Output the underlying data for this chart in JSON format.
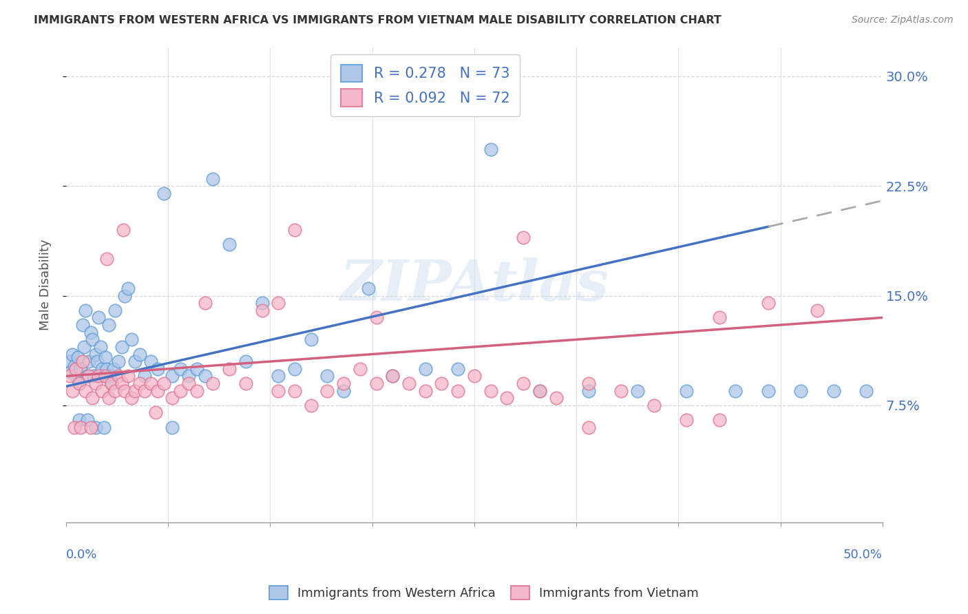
{
  "title": "IMMIGRANTS FROM WESTERN AFRICA VS IMMIGRANTS FROM VIETNAM MALE DISABILITY CORRELATION CHART",
  "source": "Source: ZipAtlas.com",
  "ylabel": "Male Disability",
  "xlim": [
    0.0,
    0.5
  ],
  "ylim": [
    -0.005,
    0.32
  ],
  "yticks": [
    0.075,
    0.15,
    0.225,
    0.3
  ],
  "ytick_labels": [
    "7.5%",
    "15.0%",
    "22.5%",
    "30.0%"
  ],
  "xticks": [
    0.0,
    0.0625,
    0.125,
    0.1875,
    0.25,
    0.3125,
    0.375,
    0.4375,
    0.5
  ],
  "series1_color": "#aec6e8",
  "series1_edge": "#5b9bd5",
  "series2_color": "#f4b8c8",
  "series2_edge": "#e07090",
  "line1_color": "#4472c4",
  "line2_color": "#d46080",
  "legend_R1": "0.278",
  "legend_N1": "73",
  "legend_R2": "0.092",
  "legend_N2": "72",
  "legend_label1": "Immigrants from Western Africa",
  "legend_label2": "Immigrants from Vietnam",
  "watermark": "ZIPAtlas",
  "background_color": "#ffffff",
  "grid_color": "#cccccc",
  "text_color": "#4472c4",
  "title_color": "#333333",
  "line1_x0": 0.0,
  "line1_y0": 0.088,
  "line1_x1": 0.5,
  "line1_y1": 0.215,
  "line1_solid_end": 0.43,
  "line2_x0": 0.0,
  "line2_y0": 0.095,
  "line2_x1": 0.5,
  "line2_y1": 0.135,
  "series1_x": [
    0.002,
    0.003,
    0.004,
    0.005,
    0.006,
    0.007,
    0.008,
    0.009,
    0.01,
    0.011,
    0.012,
    0.013,
    0.014,
    0.015,
    0.016,
    0.017,
    0.018,
    0.019,
    0.02,
    0.021,
    0.022,
    0.023,
    0.024,
    0.025,
    0.026,
    0.027,
    0.028,
    0.029,
    0.03,
    0.032,
    0.034,
    0.036,
    0.038,
    0.04,
    0.042,
    0.045,
    0.048,
    0.052,
    0.056,
    0.06,
    0.065,
    0.07,
    0.075,
    0.08,
    0.085,
    0.09,
    0.1,
    0.11,
    0.12,
    0.13,
    0.14,
    0.15,
    0.16,
    0.17,
    0.185,
    0.2,
    0.22,
    0.24,
    0.26,
    0.29,
    0.32,
    0.35,
    0.38,
    0.41,
    0.43,
    0.45,
    0.47,
    0.49,
    0.008,
    0.013,
    0.018,
    0.023,
    0.065
  ],
  "series1_y": [
    0.105,
    0.098,
    0.11,
    0.102,
    0.095,
    0.108,
    0.09,
    0.1,
    0.13,
    0.115,
    0.14,
    0.095,
    0.105,
    0.125,
    0.12,
    0.095,
    0.11,
    0.105,
    0.135,
    0.115,
    0.1,
    0.095,
    0.108,
    0.1,
    0.13,
    0.095,
    0.09,
    0.1,
    0.14,
    0.105,
    0.115,
    0.15,
    0.155,
    0.12,
    0.105,
    0.11,
    0.095,
    0.105,
    0.1,
    0.22,
    0.095,
    0.1,
    0.095,
    0.1,
    0.095,
    0.23,
    0.185,
    0.105,
    0.145,
    0.095,
    0.1,
    0.12,
    0.095,
    0.085,
    0.155,
    0.095,
    0.1,
    0.1,
    0.25,
    0.085,
    0.085,
    0.085,
    0.085,
    0.085,
    0.085,
    0.085,
    0.085,
    0.085,
    0.065,
    0.065,
    0.06,
    0.06,
    0.06
  ],
  "series2_x": [
    0.002,
    0.004,
    0.006,
    0.008,
    0.01,
    0.012,
    0.014,
    0.016,
    0.018,
    0.02,
    0.022,
    0.024,
    0.026,
    0.028,
    0.03,
    0.032,
    0.034,
    0.036,
    0.038,
    0.04,
    0.042,
    0.045,
    0.048,
    0.052,
    0.056,
    0.06,
    0.065,
    0.07,
    0.075,
    0.08,
    0.09,
    0.1,
    0.11,
    0.12,
    0.13,
    0.14,
    0.15,
    0.16,
    0.17,
    0.18,
    0.19,
    0.2,
    0.21,
    0.22,
    0.23,
    0.24,
    0.25,
    0.26,
    0.27,
    0.28,
    0.29,
    0.3,
    0.32,
    0.34,
    0.36,
    0.38,
    0.4,
    0.14,
    0.28,
    0.32,
    0.005,
    0.009,
    0.015,
    0.025,
    0.035,
    0.055,
    0.085,
    0.13,
    0.19,
    0.4,
    0.43,
    0.46
  ],
  "series2_y": [
    0.095,
    0.085,
    0.1,
    0.09,
    0.105,
    0.085,
    0.095,
    0.08,
    0.09,
    0.095,
    0.085,
    0.095,
    0.08,
    0.09,
    0.085,
    0.095,
    0.09,
    0.085,
    0.095,
    0.08,
    0.085,
    0.09,
    0.085,
    0.09,
    0.085,
    0.09,
    0.08,
    0.085,
    0.09,
    0.085,
    0.09,
    0.1,
    0.09,
    0.14,
    0.085,
    0.085,
    0.075,
    0.085,
    0.09,
    0.1,
    0.09,
    0.095,
    0.09,
    0.085,
    0.09,
    0.085,
    0.095,
    0.085,
    0.08,
    0.09,
    0.085,
    0.08,
    0.09,
    0.085,
    0.075,
    0.065,
    0.065,
    0.195,
    0.19,
    0.06,
    0.06,
    0.06,
    0.06,
    0.175,
    0.195,
    0.07,
    0.145,
    0.145,
    0.135,
    0.135,
    0.145,
    0.14
  ]
}
